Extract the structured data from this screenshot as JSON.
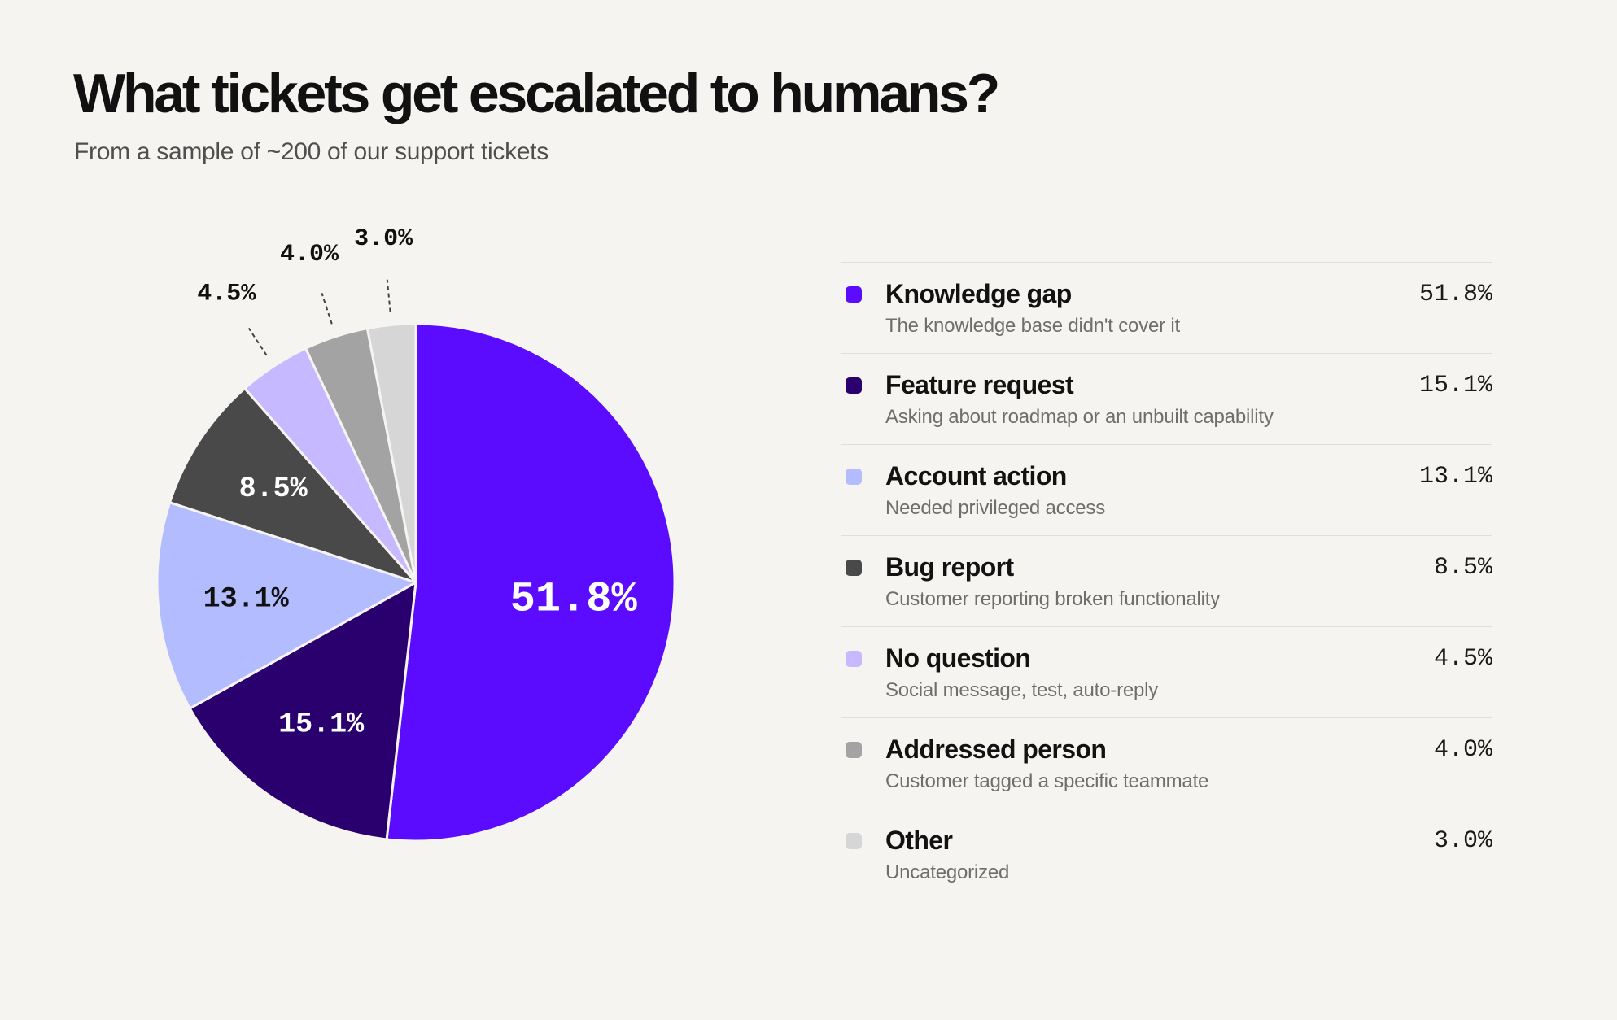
{
  "header": {
    "title": "What tickets get escalated to humans?",
    "subtitle": "From a sample of ~200 of our support tickets"
  },
  "chart_data": {
    "type": "pie",
    "title": "What tickets get escalated to humans?",
    "subtitle": "From a sample of ~200 of our support tickets",
    "unit": "%",
    "legend_position": "right",
    "slices": [
      {
        "label": "Knowledge gap",
        "description": "The knowledge base didn't cover it",
        "value": 51.8,
        "value_label": "51.8%",
        "color": "#5b0cff",
        "label_color": "#ffffff",
        "label_placement": "inside"
      },
      {
        "label": "Feature request",
        "description": "Asking about roadmap or an unbuilt capability",
        "value": 15.1,
        "value_label": "15.1%",
        "color": "#2a006e",
        "label_color": "#ffffff",
        "label_placement": "inside"
      },
      {
        "label": "Account action",
        "description": "Needed privileged access",
        "value": 13.1,
        "value_label": "13.1%",
        "color": "#b2bcff",
        "label_color": "#111111",
        "label_placement": "inside"
      },
      {
        "label": "Bug report",
        "description": "Customer reporting broken functionality",
        "value": 8.5,
        "value_label": "8.5%",
        "color": "#494949",
        "label_color": "#ffffff",
        "label_placement": "inside"
      },
      {
        "label": "No question",
        "description": "Social message, test, auto-reply",
        "value": 4.5,
        "value_label": "4.5%",
        "color": "#c7b9ff",
        "label_color": "#111111",
        "label_placement": "outside"
      },
      {
        "label": "Addressed person",
        "description": "Customer tagged a specific teammate",
        "value": 4.0,
        "value_label": "4.0%",
        "color": "#a3a3a3",
        "label_color": "#111111",
        "label_placement": "outside"
      },
      {
        "label": "Other",
        "description": "Uncategorized",
        "value": 3.0,
        "value_label": "3.0%",
        "color": "#d6d6d6",
        "label_color": "#111111",
        "label_placement": "outside"
      }
    ]
  }
}
